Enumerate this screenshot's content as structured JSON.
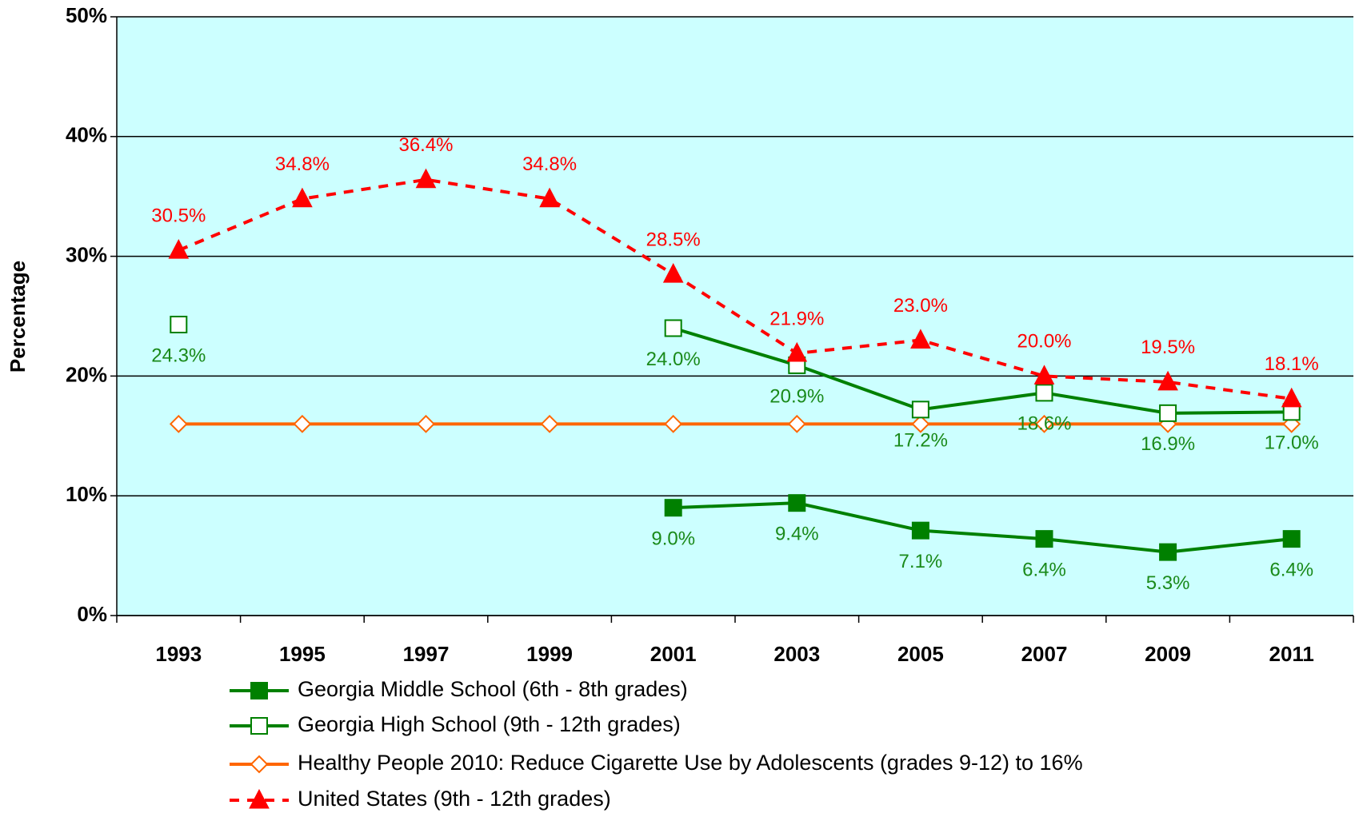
{
  "chart_data": {
    "type": "line",
    "y_label": "Percentage",
    "categories": [
      "1993",
      "1995",
      "1997",
      "1999",
      "2001",
      "2003",
      "2005",
      "2007",
      "2009",
      "2011"
    ],
    "ylim": [
      0,
      50
    ],
    "yticks": [
      {
        "value": 0,
        "label": "0%"
      },
      {
        "value": 10,
        "label": "10%"
      },
      {
        "value": 20,
        "label": "20%"
      },
      {
        "value": 30,
        "label": "30%"
      },
      {
        "value": 40,
        "label": "40%"
      },
      {
        "value": 50,
        "label": "50%"
      }
    ],
    "grid": true,
    "legend": "bottom",
    "series": [
      {
        "name": "Georgia Middle School (6th - 8th grades)",
        "color": "#008000",
        "marker": "square-filled",
        "dashed": false,
        "values": [
          null,
          null,
          null,
          null,
          9.0,
          9.4,
          7.1,
          6.4,
          5.3,
          6.4
        ],
        "value_labels": [
          null,
          null,
          null,
          null,
          "9.0%",
          "9.4%",
          "7.1%",
          "6.4%",
          "5.3%",
          "6.4%"
        ]
      },
      {
        "name": "Georgia High School (9th - 12th grades)",
        "color": "#008000",
        "marker": "square-open",
        "dashed": false,
        "values": [
          24.3,
          null,
          null,
          null,
          24.0,
          20.9,
          17.2,
          18.6,
          16.9,
          17.0
        ],
        "value_labels": [
          "24.3%",
          null,
          null,
          null,
          "24.0%",
          "20.9%",
          "17.2%",
          "18.6%",
          "16.9%",
          "17.0%"
        ]
      },
      {
        "name": "Healthy People 2010: Reduce Cigarette Use by Adolescents (grades 9-12) to 16%",
        "color": "#ff6600",
        "marker": "diamond-open",
        "dashed": false,
        "values": [
          16,
          16,
          16,
          16,
          16,
          16,
          16,
          16,
          16,
          16
        ]
      },
      {
        "name": "United States (9th - 12th grades)",
        "color": "#ff0000",
        "marker": "triangle-filled",
        "dashed": true,
        "values": [
          30.5,
          34.8,
          36.4,
          34.8,
          28.5,
          21.9,
          23.0,
          20.0,
          19.5,
          18.1
        ],
        "value_labels": [
          "30.5%",
          "34.8%",
          "36.4%",
          "34.8%",
          "28.5%",
          "21.9%",
          "23.0%",
          "20.0%",
          "19.5%",
          "18.1%"
        ]
      }
    ]
  }
}
